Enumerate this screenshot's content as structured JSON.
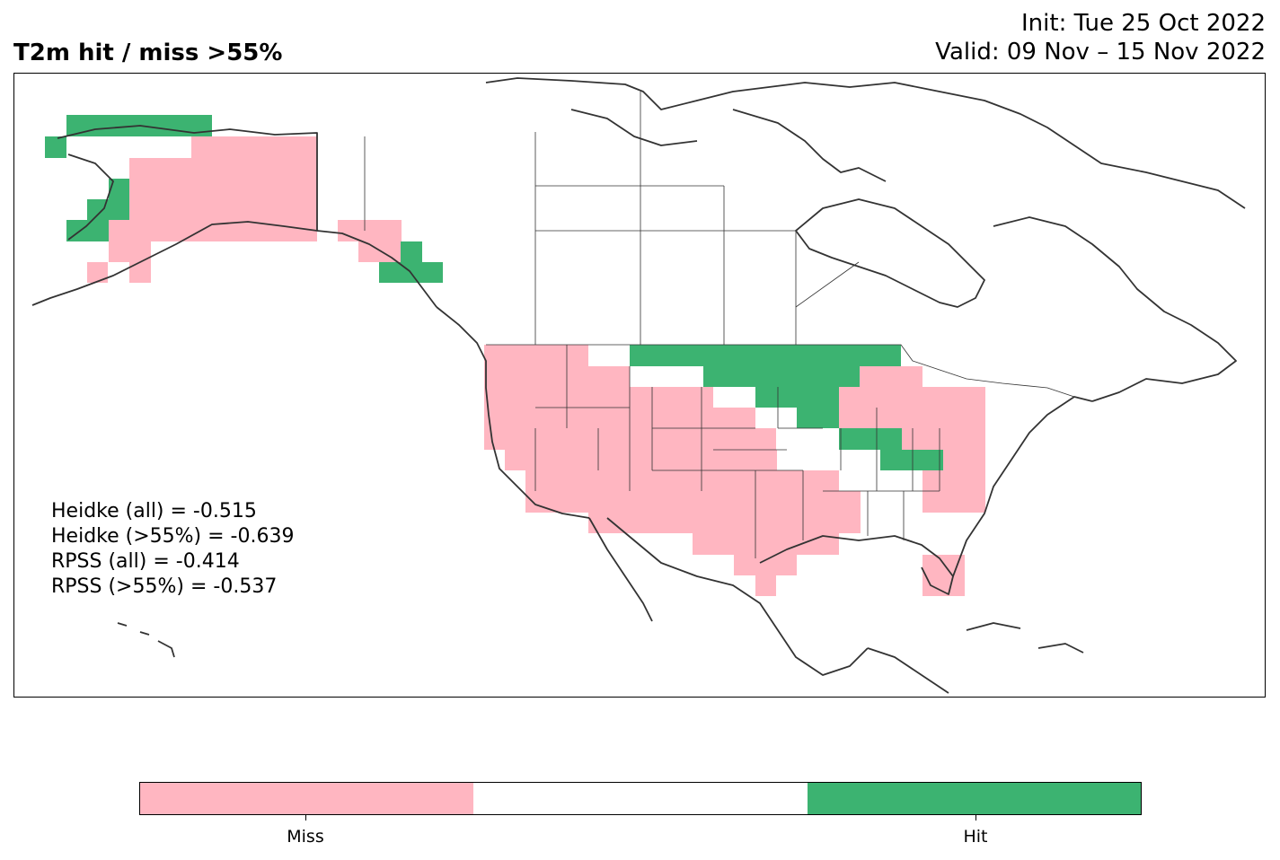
{
  "header": {
    "title": "T2m hit / miss  >55%",
    "init": "Init: Tue 25 Oct 2022",
    "valid": "Valid: 09 Nov – 15 Nov 2022"
  },
  "scores": [
    "Heidke (all) = -0.515",
    "Heidke (>55%) = -0.639",
    "RPSS (all) = -0.414",
    "RPSS (>55%) = -0.537"
  ],
  "colorbar": {
    "categories": [
      "Miss",
      "",
      "Hit"
    ],
    "colors": [
      "#ffb6c1",
      "#ffffff",
      "#3cb371"
    ],
    "tick_labels": [
      "Miss",
      "Hit"
    ]
  },
  "map": {
    "miss_color": "#ffb6c1",
    "hit_color": "#3cb371",
    "coast_color": "#333333"
  }
}
